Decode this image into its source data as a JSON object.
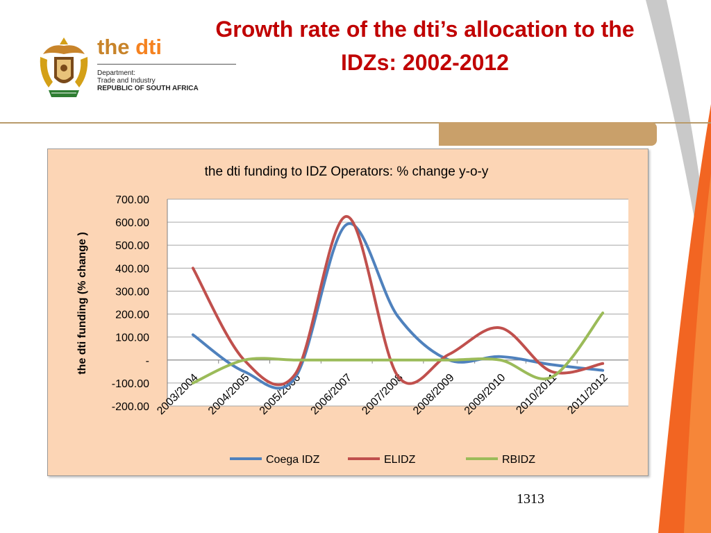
{
  "slide": {
    "title": "Growth rate of the dti’s allocation to the IDZs: 2002-2012",
    "page_number": "1313"
  },
  "logo": {
    "brand_prefix": "the ",
    "brand_name": "dti",
    "dept_line1": "Department:",
    "dept_line2": "Trade and Industry",
    "dept_line3": "REPUBLIC OF SOUTH AFRICA"
  },
  "colors": {
    "title": "#c00000",
    "chart_background": "#fcd5b5",
    "coega": "#4f81bd",
    "elidz": "#c0504d",
    "rbidz": "#9bbb59",
    "accent_orange": "#f26522",
    "accent_tan": "#c9a06a"
  },
  "chart_data": {
    "type": "line",
    "title": "the dti funding to IDZ Operators: % change y-o-y",
    "xlabel": "",
    "ylabel": "the dti funding (% change )",
    "categories": [
      "2003/2004",
      "2004/2005",
      "2005/2006",
      "2006/2007",
      "2007/2008",
      "2008/2009",
      "2009/2010",
      "2010/2011",
      "2011/2012"
    ],
    "yticks": [
      "700.00",
      "600.00",
      "500.00",
      "400.00",
      "300.00",
      "200.00",
      "100.00",
      "-",
      "-100.00",
      "-200.00"
    ],
    "ylim": [
      -200,
      700
    ],
    "grid": true,
    "legend": "bottom",
    "smooth": true,
    "series": [
      {
        "name": "Coega IDZ",
        "color": "#4f81bd",
        "values": [
          110,
          -50,
          -75,
          590,
          190,
          0,
          15,
          -20,
          -45
        ]
      },
      {
        "name": "ELIDZ",
        "color": "#c0504d",
        "values": [
          400,
          0,
          -60,
          625,
          -70,
          25,
          140,
          -50,
          -15
        ]
      },
      {
        "name": "RBIDZ",
        "color": "#9bbb59",
        "values": [
          -100,
          0,
          0,
          0,
          0,
          0,
          0,
          -75,
          205
        ]
      }
    ]
  }
}
